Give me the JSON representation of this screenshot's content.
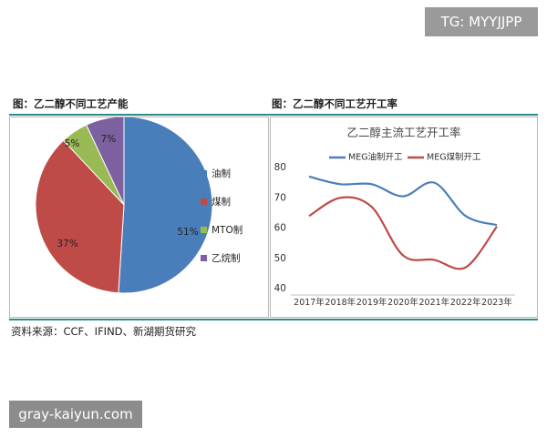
{
  "watermarks": {
    "top": "TG: MYYJJPP",
    "bottom": "gray-kaiyun.com"
  },
  "left_title": "图：乙二醇不同工艺产能",
  "right_title": "图：乙二醇不同工艺开工率",
  "source": "资料来源：CCF、IFIND、新湖期货研究",
  "chart_data": [
    {
      "type": "pie",
      "title": "",
      "slices": [
        {
          "label": "油制",
          "value": 51,
          "display": "51%",
          "color": "#4a7ebb"
        },
        {
          "label": "煤制",
          "value": 37,
          "display": "37%",
          "color": "#be4b48"
        },
        {
          "label": "MTO制",
          "value": 5,
          "display": "5%",
          "color": "#98b954"
        },
        {
          "label": "乙烷制",
          "value": 7,
          "display": "7%",
          "color": "#7d60a0"
        }
      ],
      "legend": "right"
    },
    {
      "type": "line",
      "title": "乙二醇主流工艺开工率",
      "x": [
        "2017年",
        "2018年",
        "2019年",
        "2020年",
        "2021年",
        "2022年",
        "2023年"
      ],
      "ylim": [
        40,
        80
      ],
      "yticks": [
        40,
        50,
        60,
        70,
        80
      ],
      "series": [
        {
          "name": "MEG油制开工",
          "color": "#4a7ebb",
          "values": [
            77,
            74.5,
            74.5,
            70.5,
            75,
            64,
            61
          ]
        },
        {
          "name": "MEG煤制开工",
          "color": "#be4b48",
          "values": [
            64,
            70,
            67,
            51,
            49.5,
            47,
            60.5
          ]
        }
      ],
      "legend": "top",
      "grid": false
    }
  ]
}
